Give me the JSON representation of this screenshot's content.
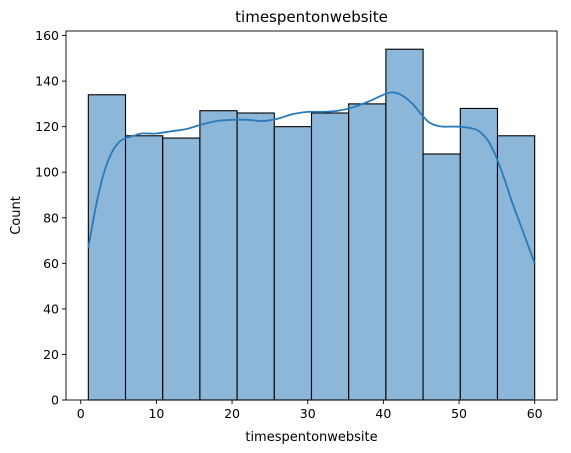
{
  "chart_data": {
    "type": "bar",
    "subtype": "histogram",
    "title": "timespentonwebsite",
    "xlabel": "timespentonwebsite",
    "ylabel": "Count",
    "xlim": [
      -1.95,
      62.95
    ],
    "ylim": [
      0,
      162
    ],
    "xticks": [
      0,
      10,
      20,
      30,
      40,
      50,
      60
    ],
    "yticks": [
      0,
      20,
      40,
      60,
      80,
      100,
      120,
      140,
      160
    ],
    "bin_edges": [
      1,
      5.9167,
      10.8333,
      15.75,
      20.6667,
      25.5833,
      30.5,
      35.4167,
      40.3333,
      45.25,
      50.1667,
      55.0833,
      60
    ],
    "counts": [
      134,
      116,
      115,
      127,
      126,
      120,
      126,
      130,
      154,
      108,
      128,
      116
    ],
    "bar_fill": "#8cb7d9",
    "bar_edge": "#000000",
    "kde": {
      "color": "#2a7ab9",
      "x": [
        1,
        2,
        3,
        4,
        5,
        6,
        7,
        8,
        9,
        10,
        12,
        14,
        16,
        18,
        20,
        22,
        24,
        26,
        28,
        30,
        32,
        34,
        36,
        38,
        40,
        41,
        42,
        43,
        44,
        45,
        46,
        47,
        48,
        50,
        52,
        53,
        54,
        55,
        56,
        57,
        58,
        59,
        60
      ],
      "y": [
        67,
        85,
        99,
        108,
        113,
        115,
        116,
        117,
        117,
        117,
        118,
        119,
        121,
        122.5,
        123,
        123,
        122.5,
        123.5,
        125.5,
        126.5,
        126.5,
        127,
        128.5,
        131,
        134,
        135,
        134.5,
        132.5,
        129.5,
        125.5,
        122,
        120.5,
        120,
        120,
        119,
        117,
        113,
        106,
        97,
        87,
        78,
        69,
        60
      ]
    }
  }
}
